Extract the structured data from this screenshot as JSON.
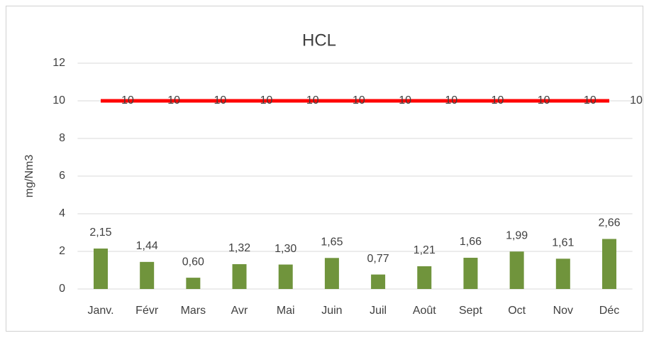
{
  "chart_data": {
    "type": "bar",
    "title": "HCL",
    "y_label": "mg/Nm3",
    "categories": [
      "Janv.",
      "Févr",
      "Mars",
      "Avr",
      "Mai",
      "Juin",
      "Juil",
      "Août",
      "Sept",
      "Oct",
      "Nov",
      "Déc"
    ],
    "series": [
      {
        "type": "bar",
        "color": "#70943c",
        "values": [
          2.15,
          1.44,
          0.6,
          1.32,
          1.3,
          1.65,
          0.77,
          1.21,
          1.66,
          1.99,
          1.61,
          2.66
        ],
        "value_labels": [
          "2,15",
          "1,44",
          "0,60",
          "1,32",
          "1,30",
          "1,65",
          "0,77",
          "1,21",
          "1,66",
          "1,99",
          "1,61",
          "2,66"
        ]
      },
      {
        "type": "line",
        "color": "#ff0000",
        "values": [
          10,
          10,
          10,
          10,
          10,
          10,
          10,
          10,
          10,
          10,
          10,
          10
        ]
      }
    ],
    "ylim": [
      0,
      12
    ],
    "yticks": [
      0,
      2,
      4,
      6,
      8,
      10,
      12
    ],
    "grid": true
  }
}
